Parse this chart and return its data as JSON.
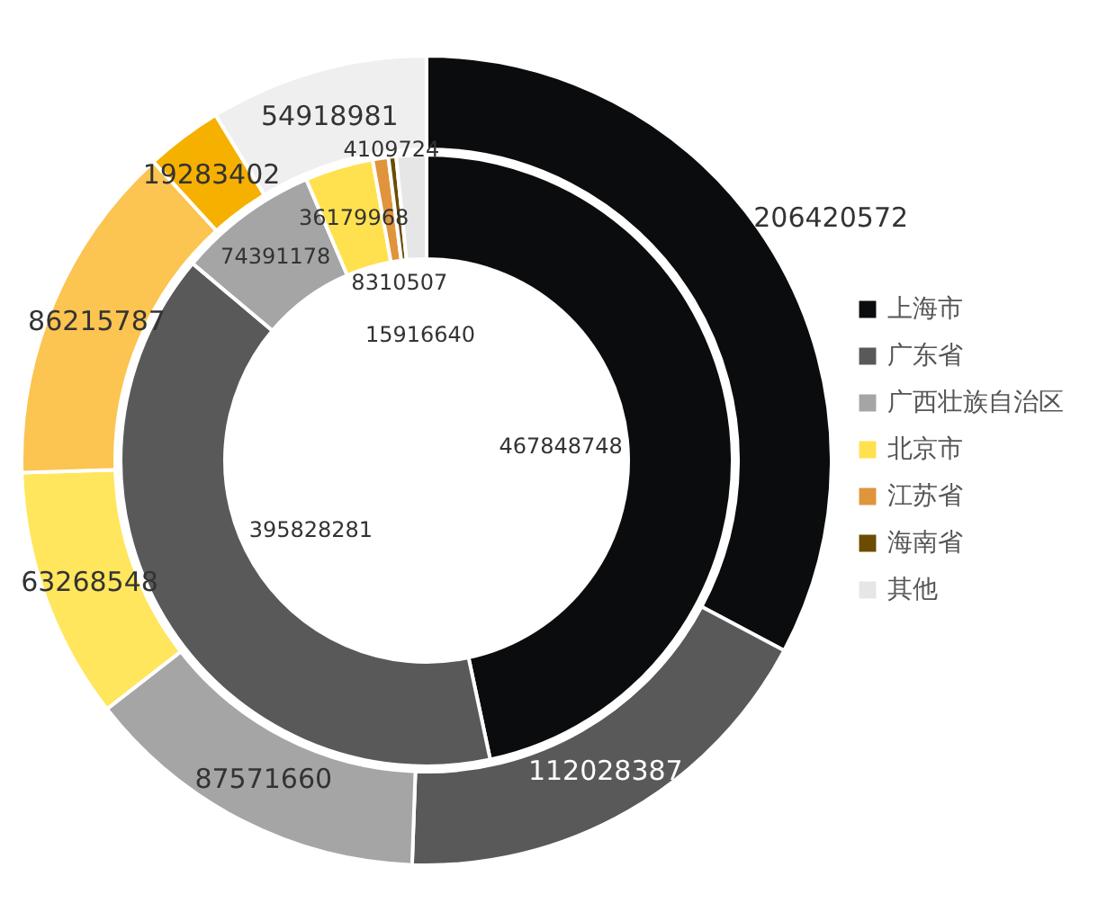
{
  "chart_data": {
    "type": "donut",
    "categories": [
      "上海市",
      "广东省",
      "广西壮族自治区",
      "北京市",
      "江苏省",
      "海南省",
      "其他"
    ],
    "legend": "right",
    "data_labels": true,
    "series": [
      {
        "colors": [
          "#0b0c0d",
          "#595959",
          "#a5a5a5",
          "#ffe14f",
          "#e0943c",
          "#6b4c00",
          "#e6e6e6"
        ],
        "values": [
          467848748,
          395828281,
          74391178,
          36179968,
          8310507,
          4109724,
          15916640
        ]
      },
      {
        "colors": [
          "#0b0c0d",
          "#595959",
          "#a5a5a5",
          "#ffe65c",
          "#fcc450",
          "#f6b000",
          "#efefef"
        ],
        "values": [
          206420572,
          112028387,
          87571660,
          63268548,
          86215787,
          19283402,
          54918981
        ]
      }
    ]
  }
}
